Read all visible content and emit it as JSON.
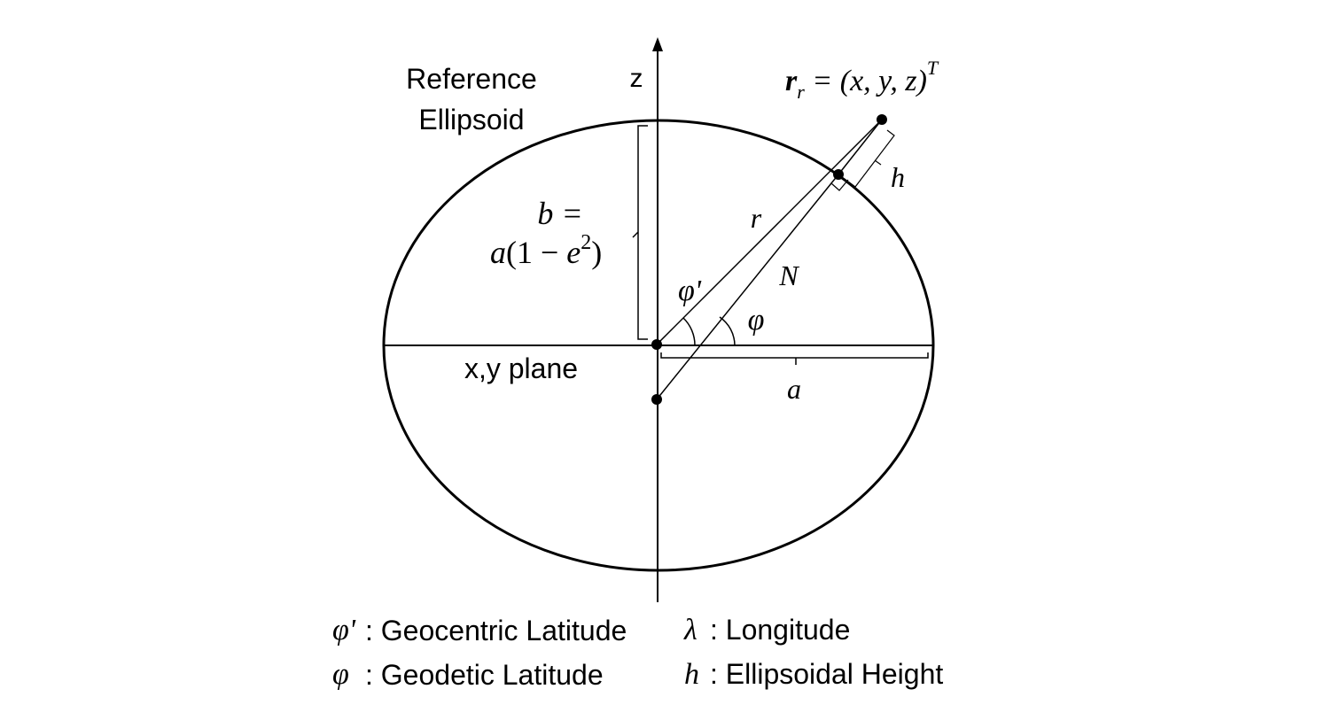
{
  "labels": {
    "reference_line1": "Reference",
    "reference_line2": "Ellipsoid",
    "z_axis": "z",
    "xy_plane": "x,y plane",
    "b": "b =",
    "b_formula_a": "a",
    "b_formula_paren_open": "(1 − ",
    "b_formula_e": "e",
    "b_formula_sup": "2",
    "b_formula_paren_close": ")",
    "a": "a",
    "r": "r",
    "N": "N",
    "phi": "φ",
    "phi_prime": "φ'",
    "h": "h"
  },
  "position_vector": {
    "symbol": "r",
    "subscript": "r",
    "equals_tuple": " = (x, y, z)",
    "superscript": "T"
  },
  "legend": [
    {
      "symbol": "φ'",
      "text": ": Geocentric Latitude"
    },
    {
      "symbol": "λ",
      "text": ": Longitude"
    },
    {
      "symbol": "φ",
      "text": ": Geodetic Latitude"
    },
    {
      "symbol": "h",
      "text": ": Ellipsoidal Height"
    }
  ]
}
